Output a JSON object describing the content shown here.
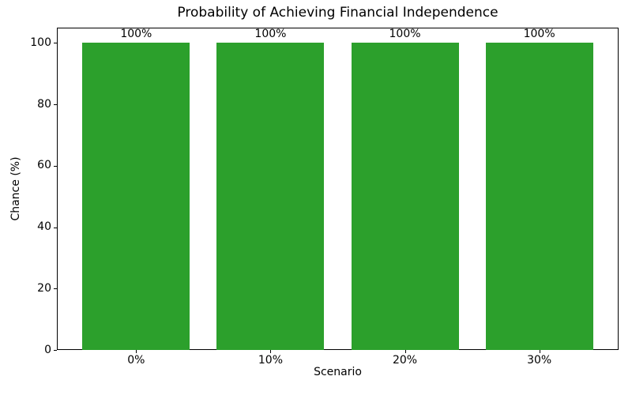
{
  "chart_data": {
    "type": "bar",
    "title": "Probability of Achieving Financial Independence",
    "xlabel": "Scenario",
    "ylabel": "Chance (%)",
    "categories": [
      "0%",
      "10%",
      "20%",
      "30%"
    ],
    "values": [
      100,
      100,
      100,
      100
    ],
    "bar_labels": [
      "100%",
      "100%",
      "100%",
      "100%"
    ],
    "yticks": [
      0,
      20,
      40,
      60,
      80,
      100
    ],
    "ylim": [
      0,
      105
    ],
    "bar_color": "#2ca02c",
    "axis_color": "#000000",
    "background_color": "#ffffff",
    "grid": false,
    "legend_position": "none",
    "bar_width_fraction": 0.8
  }
}
